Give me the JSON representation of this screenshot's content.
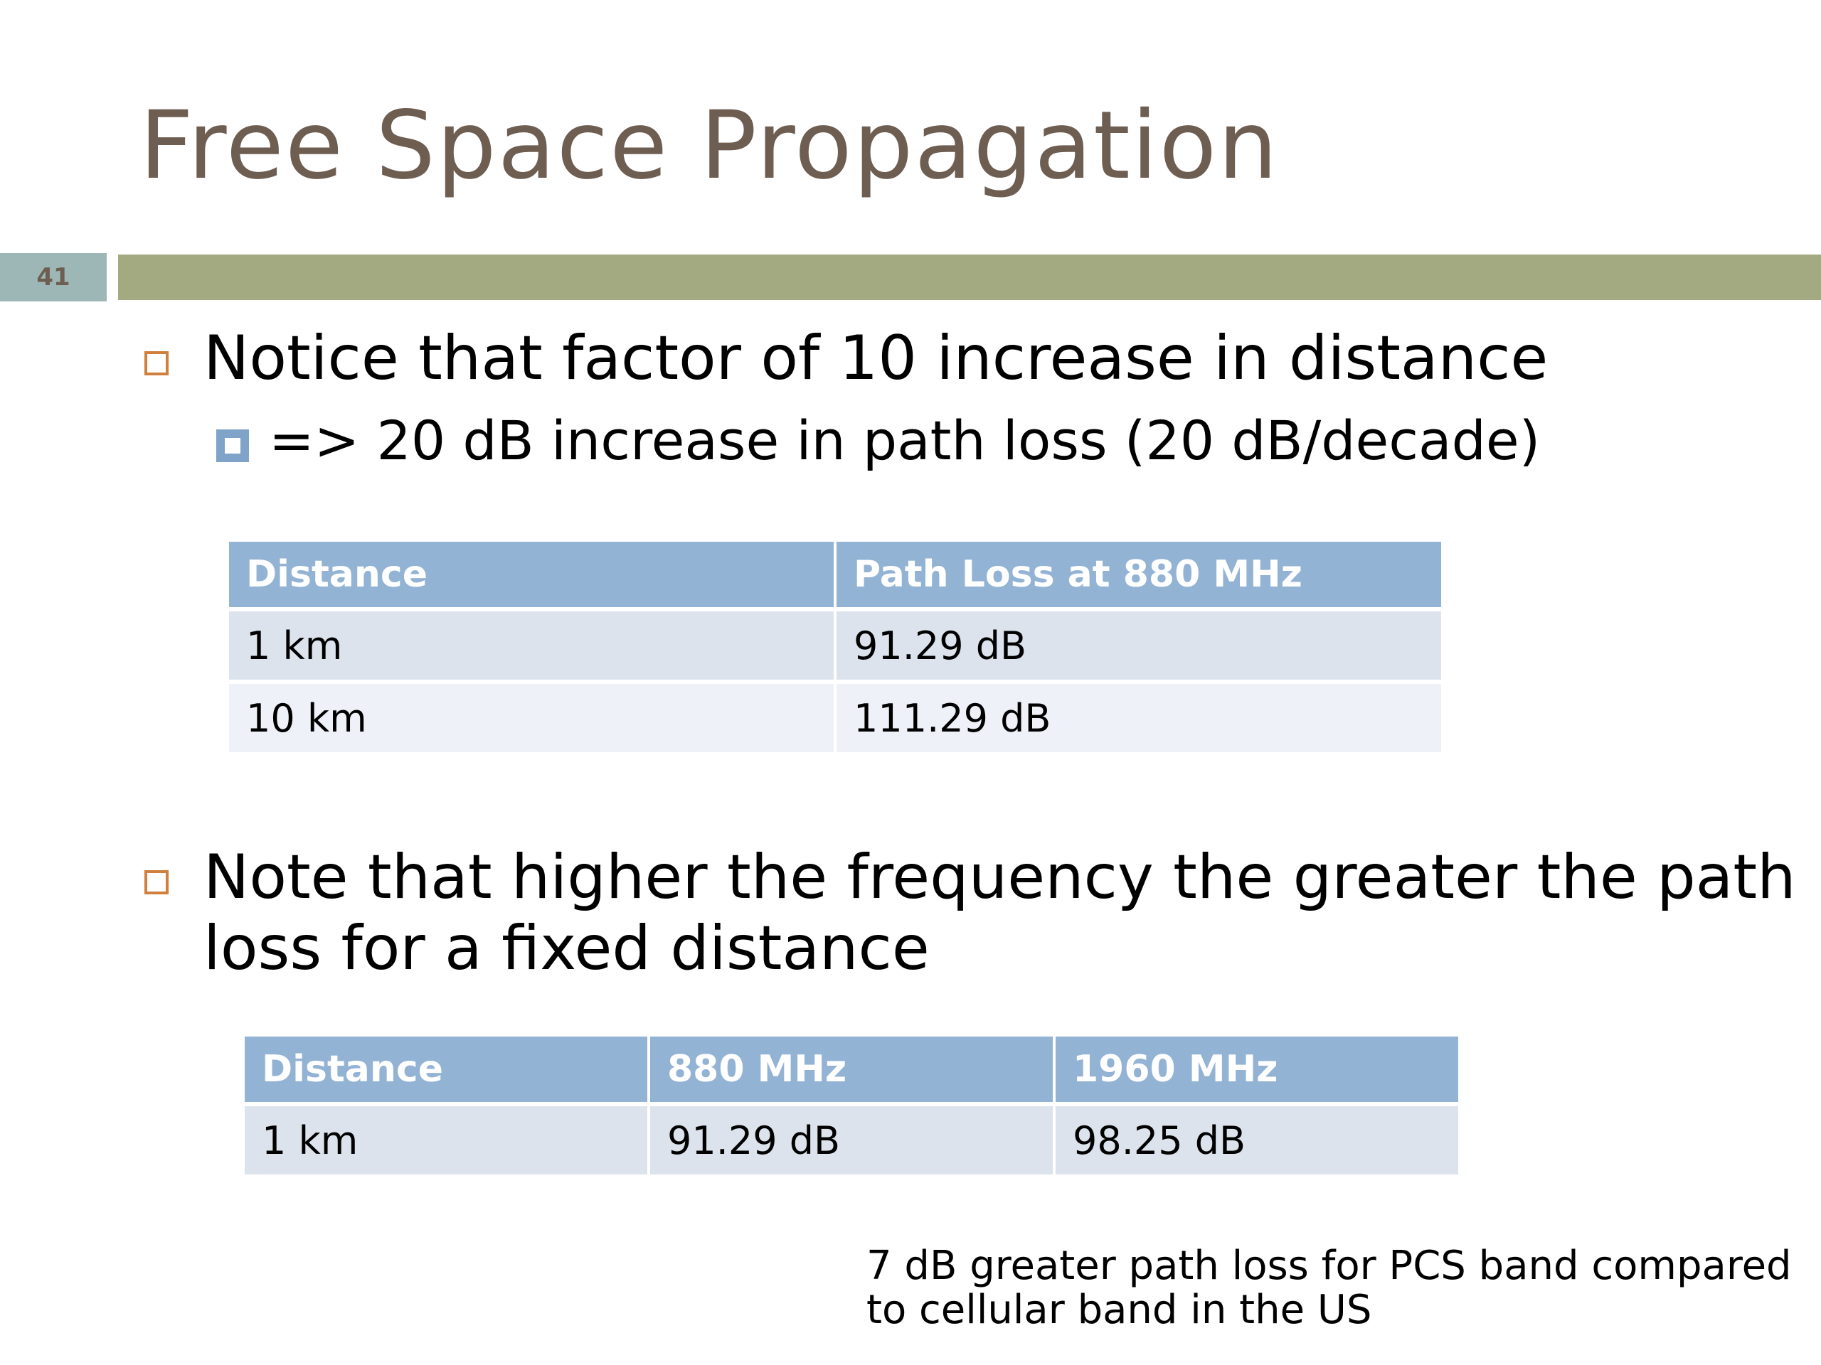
{
  "slide": {
    "title": "Free Space Propagation",
    "number": "41"
  },
  "bullets": [
    {
      "text": "Notice that factor of 10 increase in distance",
      "sub": "=> 20 dB increase in path loss (20 dB/decade)"
    },
    {
      "text": "Note that higher the frequency the greater the path loss for a fixed distance"
    }
  ],
  "table1": {
    "headers": [
      "Distance",
      "Path Loss at 880 MHz"
    ],
    "rows": [
      [
        "1 km",
        "91.29 dB"
      ],
      [
        "10 km",
        "111.29 dB"
      ]
    ]
  },
  "table2": {
    "headers": [
      "Distance",
      "880 MHz",
      "1960 MHz"
    ],
    "rows": [
      [
        "1 km",
        "91.29 dB",
        "98.25 dB"
      ]
    ]
  },
  "note": {
    "line1": "7 dB greater path loss for PCS band compared",
    "line2": "to cellular band in the US"
  },
  "colors": {
    "title": "#6e5e52",
    "header_bar": "#a3a980",
    "slide_number_box": "#9db7b7",
    "bullet": "#d07f3c",
    "sub_bullet": "#7fa3c9",
    "table_header": "#93b3d5",
    "table_row_odd": "#dde3ed",
    "table_row_even": "#eef2f8"
  }
}
